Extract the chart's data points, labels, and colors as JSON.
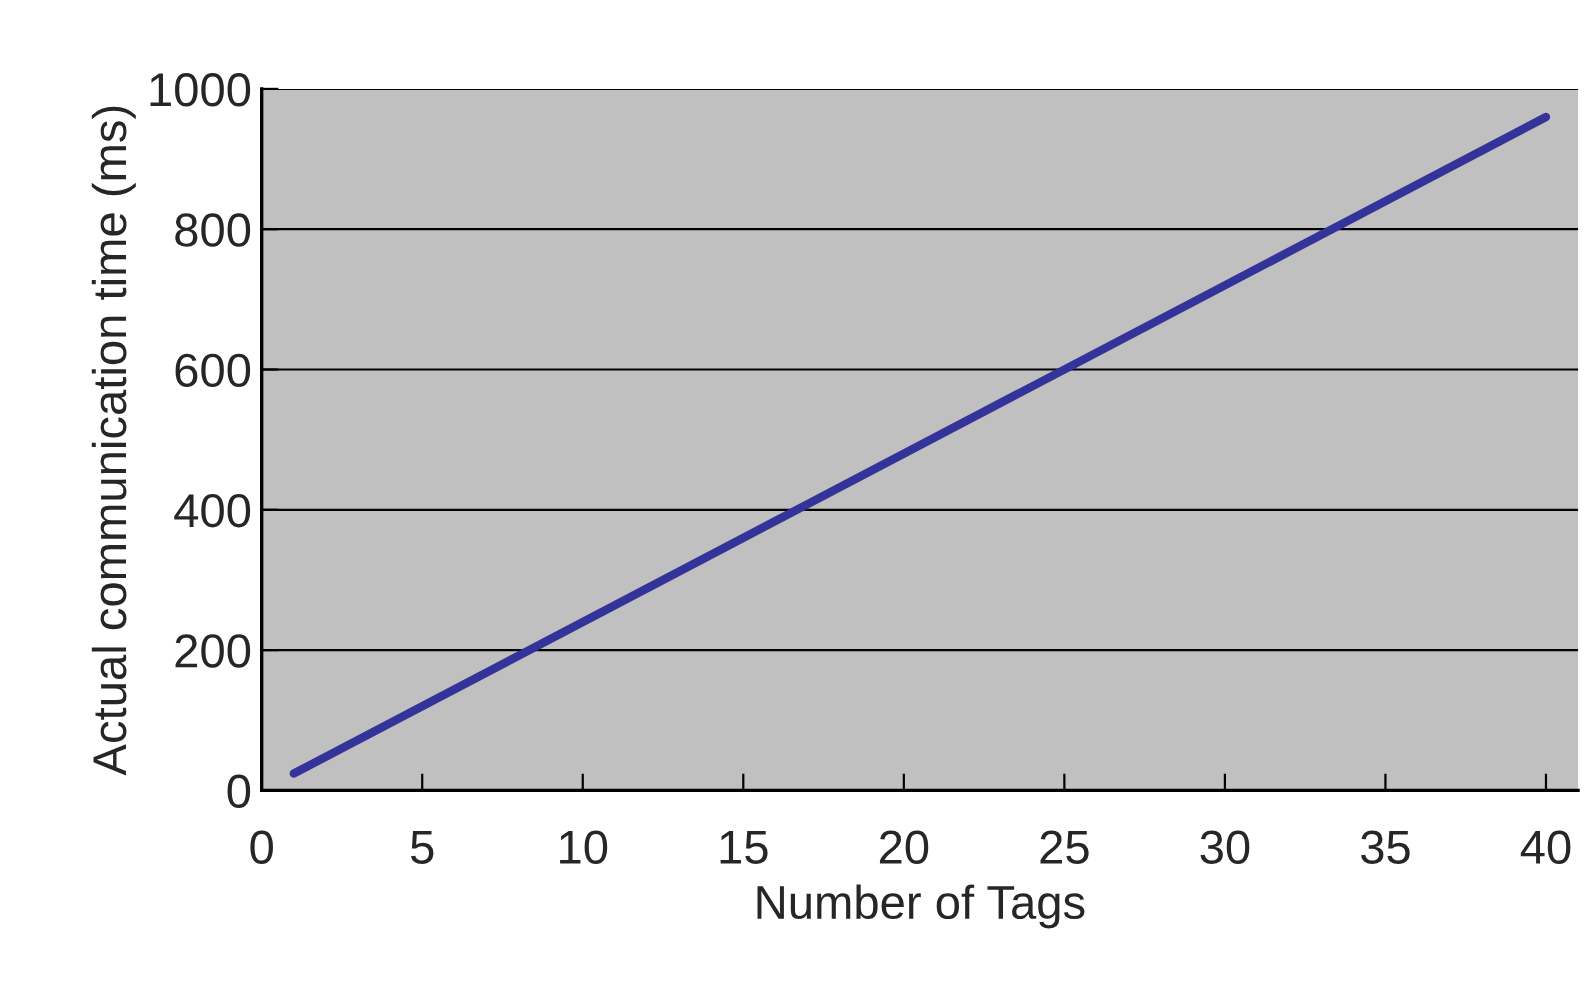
{
  "chart_data": {
    "type": "line",
    "xlabel": "Number of Tags",
    "ylabel": "Actual communication time (ms)",
    "x": [
      1,
      40
    ],
    "series": [
      {
        "color": "#333399",
        "values": [
          24,
          960
        ]
      }
    ],
    "xlim": [
      0,
      41
    ],
    "xticks": [
      0,
      5,
      10,
      15,
      20,
      25,
      30,
      35,
      40
    ],
    "ylim": [
      0,
      1000
    ],
    "yticks": [
      0,
      200,
      400,
      600,
      800,
      1000
    ],
    "grid": "y",
    "marker": "none",
    "line_style": "solid"
  }
}
